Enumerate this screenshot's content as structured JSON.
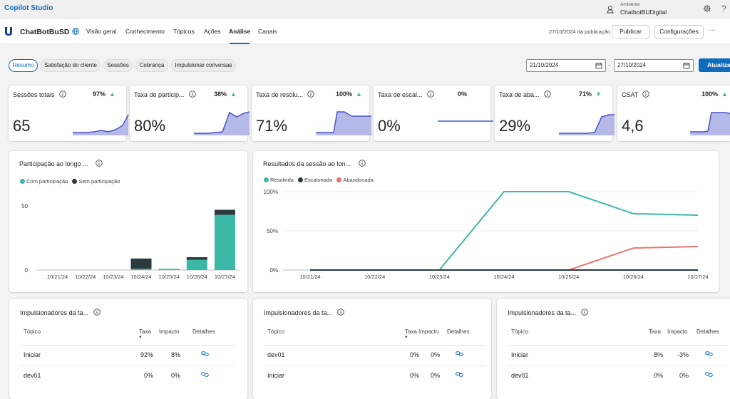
{
  "app": {
    "title": "Copilot Studio"
  },
  "environment": {
    "label": "Ambiente",
    "name": "ChatbotBUDigital"
  },
  "bot": {
    "name": "ChatBotBuSD"
  },
  "nav": {
    "tabs": [
      "Visão geral",
      "Conhecimento",
      "Tópicos",
      "Ações",
      "Análise",
      "Canais"
    ],
    "active": "Análise"
  },
  "header": {
    "published": "27/10/2024 da publicação",
    "publish_label": "Publicar",
    "settings_label": "Configurações",
    "more": "···"
  },
  "filters": {
    "chips": [
      "Resumo",
      "Satisfação do cliente",
      "Sessões",
      "Cobrança",
      "Impulsionar conversas"
    ],
    "selected": "Resumo"
  },
  "dates": {
    "from": "21/10/2024",
    "to": "27/10/2024",
    "separator": "-",
    "refresh_label": "Atualizar"
  },
  "kpis": [
    {
      "title": "Sessões totais",
      "change": "97%",
      "trend": "up",
      "value": "65"
    },
    {
      "title": "Taxa de particip...",
      "change": "38%",
      "trend": "up",
      "value": "80%"
    },
    {
      "title": "Taxa de resolu...",
      "change": "100%",
      "trend": "up",
      "value": "71%"
    },
    {
      "title": "Taxa de escal...",
      "change": "0%",
      "trend": "none",
      "value": "0%"
    },
    {
      "title": "Taxa de aba...",
      "change": "71%",
      "trend": "down",
      "value": "29%"
    },
    {
      "title": "CSAT",
      "change": "100%",
      "trend": "up",
      "value": "4,6"
    }
  ],
  "colors": {
    "accent": "#0f6cbd",
    "teal": "#3cb8a7",
    "dark": "#2b3a3f",
    "red": "#e8736d",
    "spark_fill": "#b4b9e8",
    "spark_line": "#4c55c8",
    "up": "#3cb8a7",
    "down": "#3cb8a7"
  },
  "participation": {
    "title": "Participação ao longo ...",
    "legend": [
      "Com participação",
      "Sem participação"
    ]
  },
  "results": {
    "title": "Resultados da sessão ao lon...",
    "legend": [
      "Resolvida",
      "Escalonada",
      "Abandonada"
    ]
  },
  "chart_data": [
    {
      "type": "bar",
      "title": "Participação ao longo ...",
      "categories": [
        "10/21/24",
        "10/22/24",
        "10/23/24",
        "10/24/24",
        "10/25/24",
        "10/26/24",
        "10/27/24"
      ],
      "series": [
        {
          "name": "Com participação",
          "values": [
            0,
            0,
            0,
            1,
            1,
            8,
            43
          ]
        },
        {
          "name": "Sem participação",
          "values": [
            0,
            0,
            0,
            8,
            0,
            2,
            4
          ]
        }
      ],
      "yticks": [
        "0",
        "50"
      ],
      "ylim": [
        0,
        50
      ],
      "stacked": true
    },
    {
      "type": "line",
      "title": "Resultados da sessão ao lon...",
      "categories": [
        "10/21/24",
        "10/22/24",
        "10/23/24",
        "10/24/24",
        "10/25/24",
        "10/26/24",
        "10/27/24"
      ],
      "series": [
        {
          "name": "Resolvida",
          "values": [
            0,
            0,
            0,
            100,
            100,
            72,
            70
          ]
        },
        {
          "name": "Escalonada",
          "values": [
            0,
            0,
            0,
            0,
            0,
            0,
            0
          ]
        },
        {
          "name": "Abandonada",
          "values": [
            0,
            0,
            0,
            0,
            0,
            28,
            30
          ]
        }
      ],
      "yticks": [
        "0%",
        "50%",
        "100%"
      ],
      "ylim": [
        0,
        100
      ]
    }
  ],
  "drivers": [
    {
      "title": "Impulsionadores da ta...",
      "headers": {
        "topic": "Tópico",
        "rate": "Taxa",
        "impact": "Impacto",
        "details": "Detalhes"
      },
      "rows": [
        {
          "topic": "Iniciar",
          "rate": "92%",
          "impact": "8%"
        },
        {
          "topic": "dev01",
          "rate": "0%",
          "impact": "0%"
        }
      ]
    },
    {
      "title": "Impulsionadores da ta...",
      "headers": {
        "topic": "Tópico",
        "rate": "Taxa",
        "impact": "Impacto",
        "details": "Detalhes"
      },
      "rows": [
        {
          "topic": "dev01",
          "rate": "0%",
          "impact": "0%"
        },
        {
          "topic": "Iniciar",
          "rate": "0%",
          "impact": "0%"
        }
      ]
    },
    {
      "title": "Impulsionadores da ta...",
      "headers": {
        "topic": "Tópico",
        "rate": "Taxa",
        "impact": "Impacto",
        "details": "Detalhes"
      },
      "rows": [
        {
          "topic": "Iniciar",
          "rate": "8%",
          "impact": "-3%"
        },
        {
          "topic": "dev01",
          "rate": "0%",
          "impact": "0%"
        }
      ]
    }
  ]
}
